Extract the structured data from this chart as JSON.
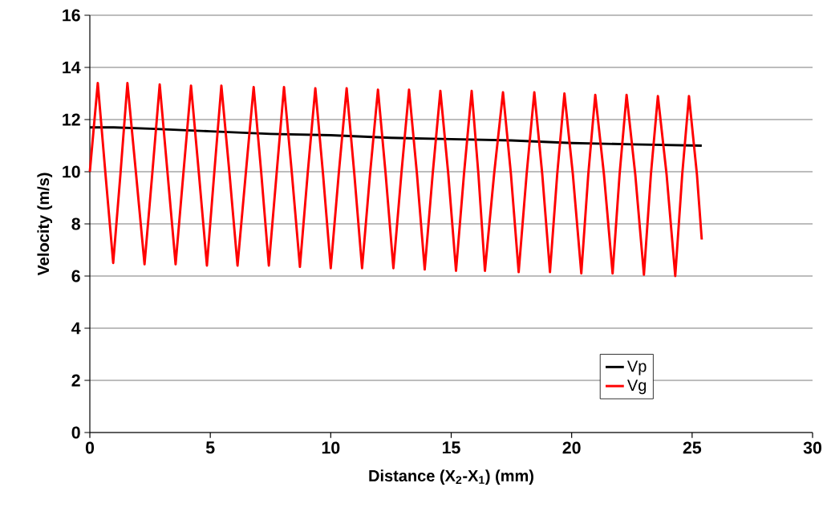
{
  "chart_data": {
    "type": "line",
    "xlabel": "Distance (X$_{2}$-X$_{1}$) (mm)",
    "ylabel": "Velocity (m/s)",
    "xlim": [
      0,
      30
    ],
    "xticks": [
      0,
      5,
      10,
      15,
      20,
      25,
      30
    ],
    "ylim": [
      0,
      16
    ],
    "yticks": [
      0,
      2,
      4,
      6,
      8,
      10,
      12,
      14,
      16
    ],
    "grid": "y",
    "legend": "bottom right",
    "marker": "none",
    "line_style": "solid",
    "series": [
      {
        "name": "Vp",
        "color": "#000000",
        "x": [
          0,
          1.0,
          2.5,
          5,
          7.5,
          10,
          12.5,
          15,
          17.5,
          20,
          22.5,
          25.4
        ],
        "values": [
          11.7,
          11.7,
          11.65,
          11.55,
          11.45,
          11.4,
          11.3,
          11.25,
          11.2,
          11.1,
          11.05,
          11.0
        ]
      },
      {
        "name": "Vg",
        "color": "#ff0000",
        "x": [
          0,
          0.33,
          0.65,
          0.97,
          1.27,
          1.56,
          1.92,
          2.27,
          2.59,
          2.9,
          3.23,
          3.56,
          3.88,
          4.2,
          4.53,
          4.86,
          5.16,
          5.46,
          5.8,
          6.13,
          6.47,
          6.8,
          7.12,
          7.43,
          7.75,
          8.06,
          8.39,
          8.72,
          9.04,
          9.36,
          9.68,
          10.0,
          10.33,
          10.66,
          10.98,
          11.3,
          11.63,
          11.96,
          12.28,
          12.6,
          12.93,
          13.25,
          13.58,
          13.9,
          14.23,
          14.55,
          14.88,
          15.2,
          15.53,
          15.85,
          16.13,
          16.4,
          16.78,
          17.15,
          17.48,
          17.8,
          18.13,
          18.45,
          18.78,
          19.1,
          19.4,
          19.7,
          20.05,
          20.4,
          20.69,
          20.98,
          21.34,
          21.7,
          21.99,
          22.28,
          22.64,
          23.0,
          23.29,
          23.58,
          23.94,
          24.3,
          24.59,
          24.87,
          25.2,
          25.4
        ],
        "values": [
          10,
          13.4,
          9.9,
          6.5,
          9.9,
          13.4,
          9.9,
          6.45,
          9.9,
          13.35,
          9.9,
          6.45,
          9.9,
          13.3,
          9.9,
          6.4,
          9.9,
          13.3,
          9.9,
          6.4,
          9.9,
          13.25,
          9.9,
          6.4,
          9.9,
          13.25,
          9.9,
          6.35,
          9.9,
          13.2,
          9.9,
          6.3,
          9.9,
          13.2,
          9.9,
          6.3,
          9.9,
          13.15,
          9.9,
          6.3,
          9.9,
          13.15,
          9.9,
          6.25,
          9.9,
          13.1,
          9.9,
          6.2,
          9.9,
          13.1,
          9.9,
          6.2,
          9.9,
          13.05,
          9.9,
          6.15,
          9.9,
          13.05,
          9.9,
          6.15,
          9.9,
          13.0,
          9.9,
          6.1,
          9.9,
          12.95,
          9.9,
          6.1,
          9.9,
          12.95,
          9.9,
          6.05,
          9.9,
          12.9,
          9.9,
          6.0,
          9.9,
          12.9,
          9.9,
          7.4
        ]
      }
    ]
  }
}
